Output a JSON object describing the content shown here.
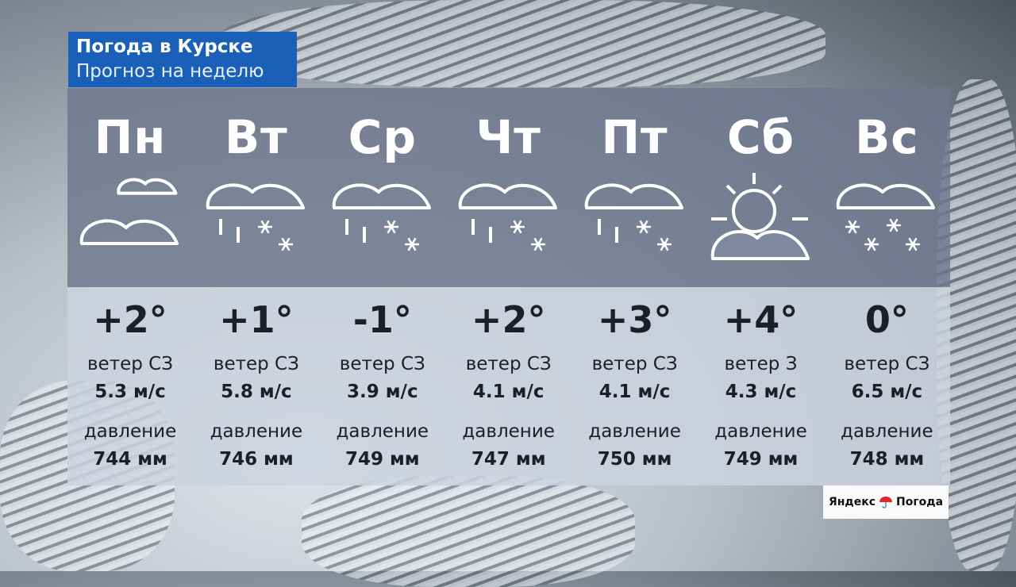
{
  "header": {
    "title": "Погода в Курске",
    "subtitle": "Прогноз на неделю"
  },
  "colors": {
    "title_bg": "#1a5fb8",
    "icon": "#ffffff"
  },
  "days": [
    {
      "day": "Пн",
      "icon": "cloudy-icon",
      "temp": "+2°",
      "wind_label": "ветер СЗ",
      "wind": "5.3 м/с",
      "pressure_label": "давление",
      "pressure": "744 мм"
    },
    {
      "day": "Вт",
      "icon": "sleet-icon",
      "temp": "+1°",
      "wind_label": "ветер СЗ",
      "wind": "5.8 м/с",
      "pressure_label": "давление",
      "pressure": "746 мм"
    },
    {
      "day": "Ср",
      "icon": "sleet-icon",
      "temp": "-1°",
      "wind_label": "ветер СЗ",
      "wind": "3.9 м/с",
      "pressure_label": "давление",
      "pressure": "749 мм"
    },
    {
      "day": "Чт",
      "icon": "sleet-icon",
      "temp": "+2°",
      "wind_label": "ветер СЗ",
      "wind": "4.1 м/с",
      "pressure_label": "давление",
      "pressure": "747 мм"
    },
    {
      "day": "Пт",
      "icon": "sleet-icon",
      "temp": "+3°",
      "wind_label": "ветер СЗ",
      "wind": "4.1 м/с",
      "pressure_label": "давление",
      "pressure": "750 мм"
    },
    {
      "day": "Сб",
      "icon": "partly-cloudy-icon",
      "temp": "+4°",
      "wind_label": "ветер З",
      "wind": "4.3 м/с",
      "pressure_label": "давление",
      "pressure": "749 мм"
    },
    {
      "day": "Вс",
      "icon": "snow-icon",
      "temp": "0°",
      "wind_label": "ветер СЗ",
      "wind": "6.5 м/с",
      "pressure_label": "давление",
      "pressure": "748 мм"
    }
  ],
  "logo": {
    "brand": "Яндекс",
    "product": "Погода"
  }
}
